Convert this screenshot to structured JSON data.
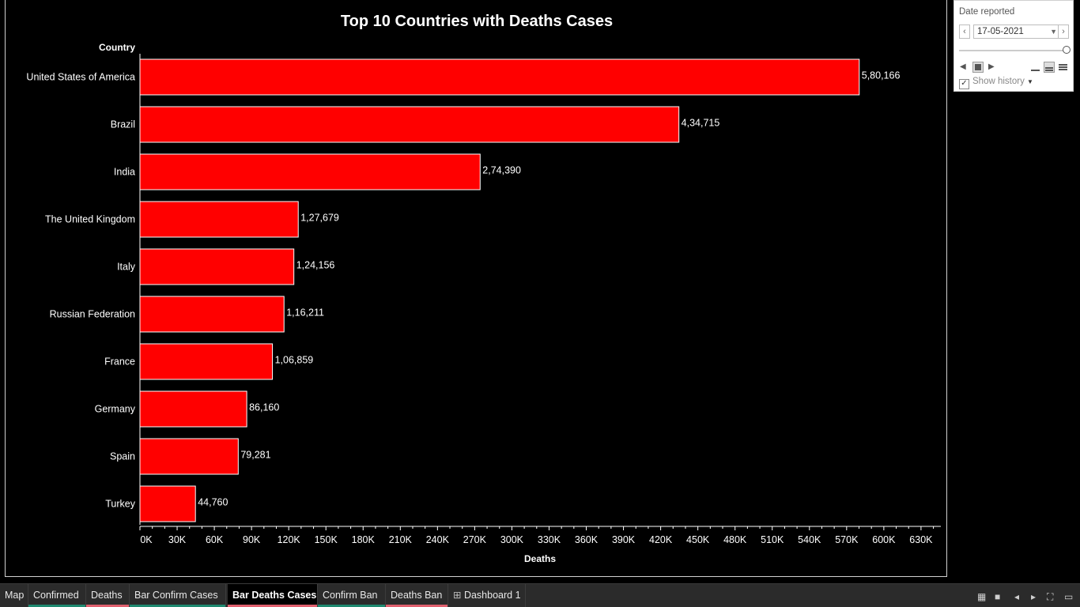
{
  "chart_data": {
    "type": "bar",
    "orientation": "horizontal",
    "title": "Top 10 Countries with Deaths Cases",
    "ylabel": "Country",
    "xlabel": "Deaths",
    "categories": [
      "United States of America",
      "Brazil",
      "India",
      "The United Kingdom",
      "Italy",
      "Russian Federation",
      "France",
      "Germany",
      "Spain",
      "Turkey"
    ],
    "values": [
      580166,
      434715,
      274390,
      127679,
      124156,
      116211,
      106859,
      86160,
      79281,
      44760
    ],
    "value_labels": [
      "5,80,166",
      "4,34,715",
      "2,74,390",
      "1,27,679",
      "1,24,156",
      "1,16,211",
      "1,06,859",
      "86,160",
      "79,281",
      "44,760"
    ],
    "xticks": [
      "0K",
      "30K",
      "60K",
      "90K",
      "120K",
      "150K",
      "180K",
      "210K",
      "240K",
      "270K",
      "300K",
      "330K",
      "360K",
      "390K",
      "420K",
      "450K",
      "480K",
      "510K",
      "540K",
      "570K",
      "600K",
      "630K"
    ],
    "xlim": [
      0,
      646000
    ],
    "bar_color": "#ff0000",
    "bar_border": "#ffffff",
    "grid": false
  },
  "filter": {
    "title": "Date reported",
    "date_value": "17-05-2021",
    "prev_icon": "chevron-left-icon",
    "next_icon": "chevron-right-icon",
    "show_history_label": "Show history"
  },
  "tabs": [
    {
      "label": "Map",
      "color": ""
    },
    {
      "label": "Confirmed",
      "color": "#1f8a70"
    },
    {
      "label": "Deaths",
      "color": "#e0606e"
    },
    {
      "label": "Bar Confirm Cases",
      "color": "#1f8a70"
    },
    {
      "label": "Bar Deaths Cases",
      "color": "#e0606e"
    },
    {
      "label": "Confirm Ban",
      "color": "#1f8a70"
    },
    {
      "label": "Deaths Ban",
      "color": "#e0606e"
    },
    {
      "label": "Dashboard 1",
      "color": ""
    }
  ],
  "active_tab": "Bar Deaths Cases"
}
